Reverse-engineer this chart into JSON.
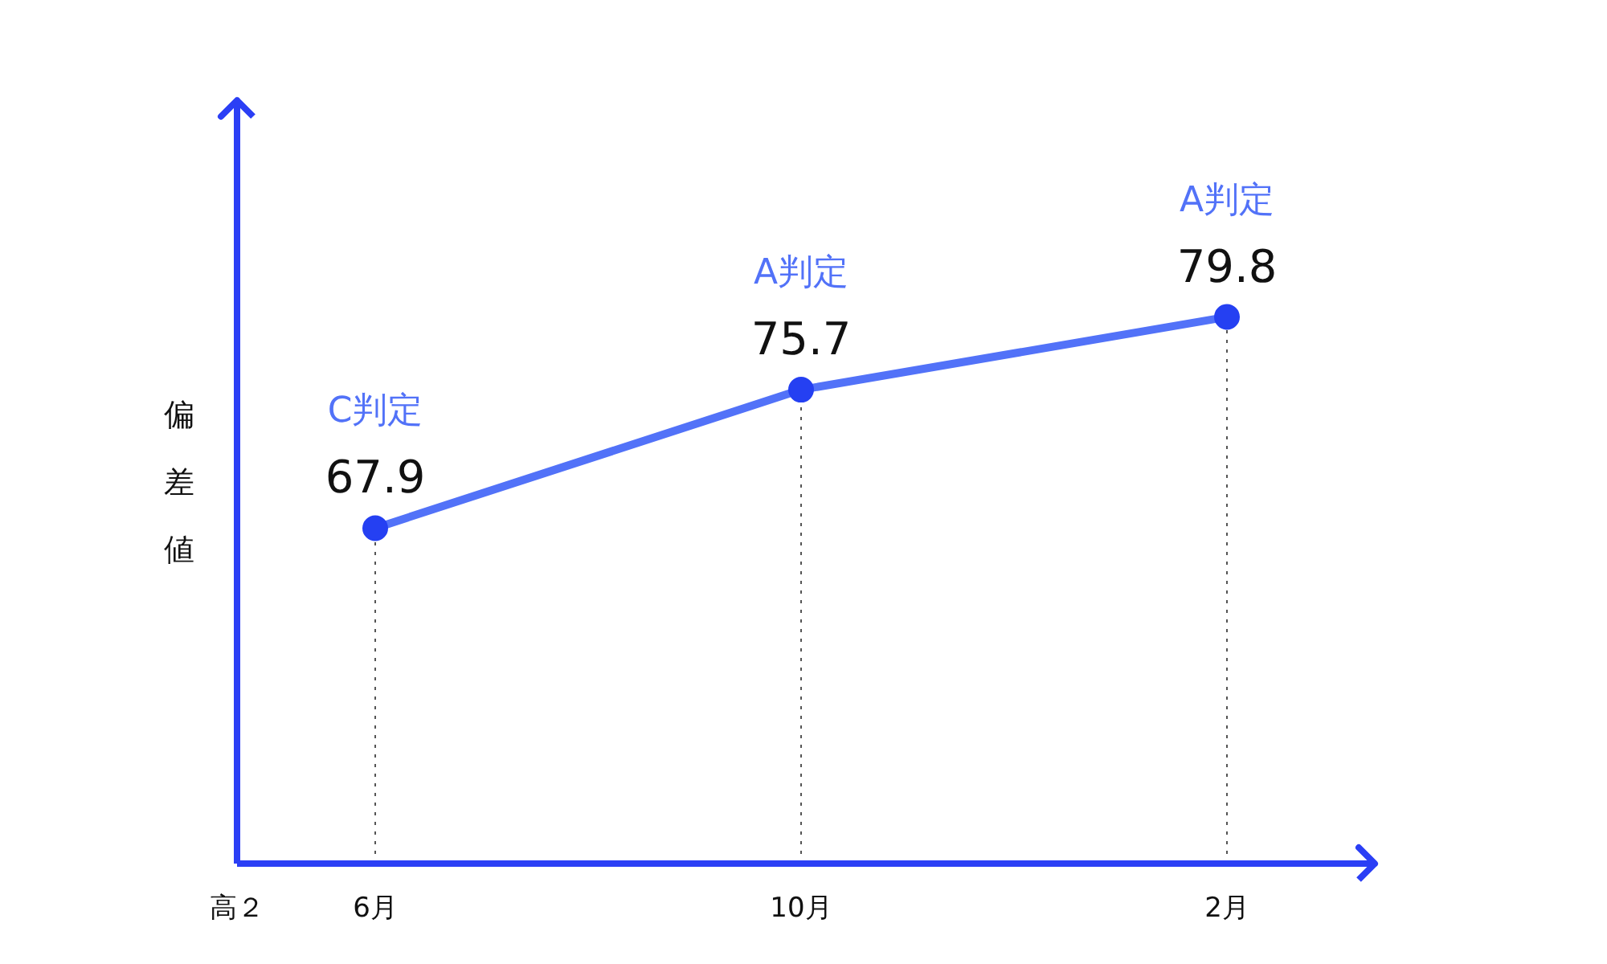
{
  "chart_data": {
    "type": "line",
    "xlabel": "高２",
    "ylabel": "偏差値",
    "categories": [
      "6月",
      "10月",
      "2月"
    ],
    "series": [
      {
        "color": "#5272f8",
        "colors": [
          "#2540f2",
          "#2540f2",
          "#2540f2"
        ],
        "values": [
          67.9,
          75.7,
          79.8
        ]
      }
    ],
    "ylim": [
      49,
      92
    ],
    "data_labels": true,
    "marker": "circle",
    "line_style": "solid",
    "annotations": [
      {
        "text": "C判定",
        "x": "6月",
        "y": 67.9
      },
      {
        "text": "A判定",
        "x": "10月",
        "y": 75.7
      },
      {
        "text": "A判定",
        "x": "2月",
        "y": 79.8
      }
    ],
    "ref_lines": [
      {
        "axis": "x",
        "value": "6月",
        "label": null,
        "line_style": "dotted",
        "color": "#555555"
      },
      {
        "axis": "x",
        "value": "10月",
        "label": null,
        "line_style": "dotted",
        "color": "#555555"
      },
      {
        "axis": "x",
        "value": "2月",
        "label": null,
        "line_style": "dotted",
        "color": "#555555"
      }
    ]
  }
}
